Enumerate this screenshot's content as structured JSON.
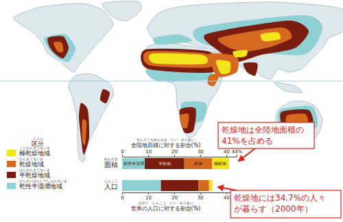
{
  "map_legend": {
    "title": "区分",
    "title_reading": "くぶん",
    "items": [
      {
        "label": "極乾燥地域",
        "reading": "ごくかんそうちいき",
        "color": "#f3e51c"
      },
      {
        "label": "乾燥地域",
        "reading": "かんそうちいき",
        "color": "#d4691f"
      },
      {
        "label": "半乾燥地域",
        "reading": "はんかんそうちいき",
        "color": "#7b1c10"
      },
      {
        "label": "乾性半湿潤地域",
        "reading": "かんせいはんしつじゅんちいき",
        "color": "#8fd0d4"
      }
    ]
  },
  "chart_data": {
    "type": "bar",
    "orientation": "horizontal",
    "stacked": true,
    "categories": [
      "面積",
      "人口"
    ],
    "category_readings": [
      "めんせき",
      "じんこう"
    ],
    "axis_titles": [
      {
        "text": "全陸地面積に対する割合(%)",
        "reading": "ぜんりくちめんせき　たい　わりあい"
      },
      {
        "text": "世界の人口に対する割合(%)",
        "reading": "せかい　じんこう　たい　わりあい"
      }
    ],
    "series": [
      {
        "name": "乾性半湿潤",
        "color": "#8fd0d4",
        "values": [
          8.7,
          14.9
        ]
      },
      {
        "name": "半乾燥",
        "color": "#7b1c10",
        "values": [
          15.2,
          14.4
        ]
      },
      {
        "name": "乾燥",
        "color": "#d4691f",
        "values": [
          10.6,
          4.1
        ]
      },
      {
        "name": "極乾燥",
        "color": "#f3e51c",
        "values": [
          6.6,
          1.3
        ]
      }
    ],
    "xlim": [
      0,
      44
    ],
    "xticks": [
      0,
      10,
      20,
      30,
      40,
      {
        "value": 44,
        "label": "44%"
      }
    ],
    "annotations": [
      {
        "lines": [
          "乾燥地は全陸地面積の",
          "41%を占める"
        ]
      },
      {
        "lines": [
          "乾燥地には34.7%の人々",
          "が暮らす（2000年）"
        ]
      }
    ]
  }
}
